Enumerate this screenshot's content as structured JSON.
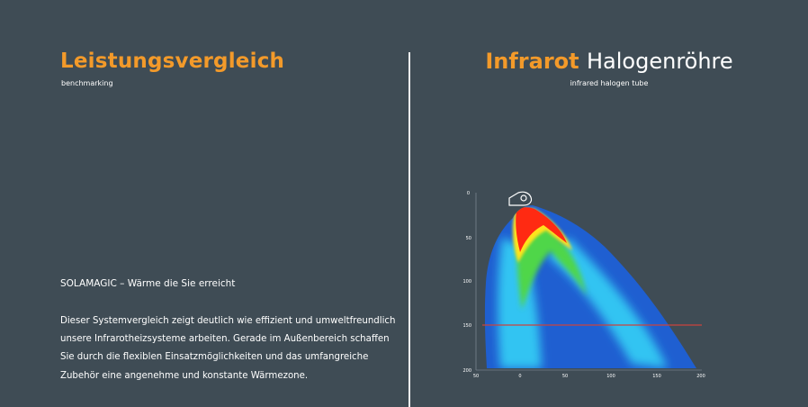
{
  "left": {
    "title": "Leistungsvergleich",
    "subtitle": "benchmarking",
    "tagline": "SOLAMAGIC – Wärme die Sie erreicht",
    "body": "Dieser Systemvergleich zeigt deutlich wie effizient und umweltfreundlich unsere Infrarotheizsysteme arbeiten. Gerade im Außenbereich schaffen Sie durch die flexiblen Einsatzmöglichkeiten und das umfangreiche Zubehör eine angenehme und konstante Wärmezone."
  },
  "right": {
    "title_accent": "Infrarot",
    "title_rest": "Halogenröhre",
    "subtitle": "infrared halogen tube"
  },
  "chart_data": {
    "type": "heatmap",
    "x_ticks": [
      "50",
      "0",
      "50",
      "100",
      "150",
      "200"
    ],
    "y_ticks": [
      "0",
      "50",
      "100",
      "150",
      "200"
    ],
    "reference_line_y": 150,
    "colors": {
      "hot": "#ff2a12",
      "warm": "#ffe31a",
      "mid": "#4fd64a",
      "cool": "#33c4f2",
      "cold": "#1f5fd1",
      "reference_line": "#c9433f"
    }
  }
}
